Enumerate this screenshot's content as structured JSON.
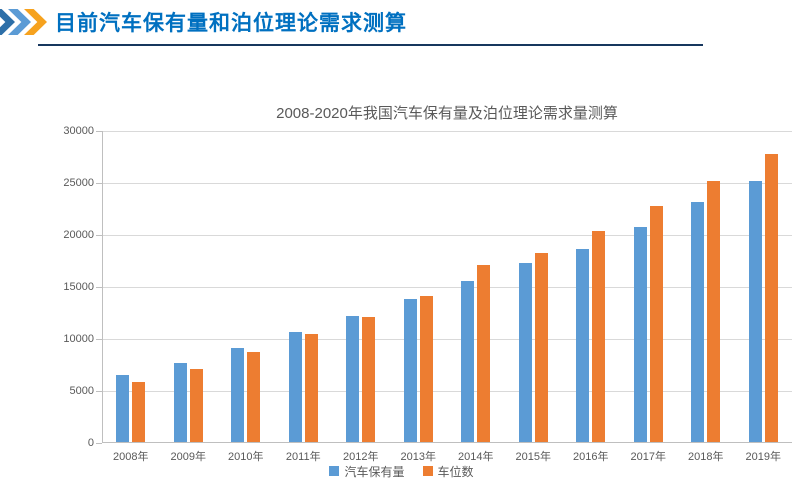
{
  "header": {
    "title": "目前汽车保有量和泊位理论需求测算"
  },
  "chart_data": {
    "type": "bar",
    "title": "2008-2020年我国汽车保有量及泊位理论需求量测算",
    "categories": [
      "2008年",
      "2009年",
      "2010年",
      "2011年",
      "2012年",
      "2013年",
      "2014年",
      "2015年",
      "2016年",
      "2017年",
      "2018年",
      "2019年"
    ],
    "series": [
      {
        "name": "汽车保有量",
        "color": "#5B9BD5",
        "values": [
          6467,
          7619,
          9086,
          10578,
          12089,
          13741,
          15447,
          17228,
          18574,
          20700,
          23100,
          25100
        ]
      },
      {
        "name": "车位数",
        "color": "#ED7D31",
        "values": [
          5750,
          7000,
          8700,
          10350,
          12000,
          14000,
          17000,
          18200,
          20300,
          22700,
          25100,
          27700
        ]
      }
    ],
    "xlabel": "",
    "ylabel": "",
    "ylim": [
      0,
      30000
    ],
    "ytick_step": 5000,
    "yticks": [
      "0",
      "5000",
      "10000",
      "15000",
      "20000",
      "25000",
      "30000"
    ],
    "grid": true,
    "legend_position": "bottom"
  },
  "colors": {
    "header_accent": "#0070C0",
    "divider": "#17375E",
    "chevron_1": "#2D6FA8",
    "chevron_2": "#5B9BD5",
    "chevron_3": "#F6A21E",
    "gridline": "#D9D9D9",
    "axis": "#BFBFBF",
    "text_muted": "#595959"
  }
}
